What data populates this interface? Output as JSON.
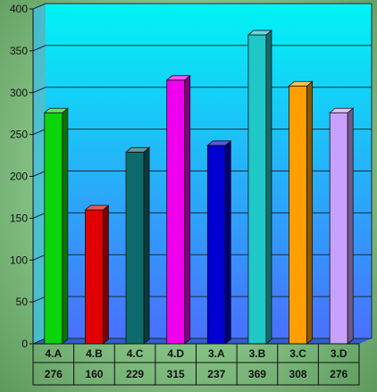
{
  "chart_data": {
    "type": "bar",
    "categories": [
      "4.A",
      "4.B",
      "4.C",
      "4.D",
      "3.A",
      "3.B",
      "3.C",
      "3.D"
    ],
    "values": [
      276,
      160,
      229,
      315,
      237,
      369,
      308,
      276
    ],
    "y_ticks": [
      0,
      50,
      100,
      150,
      200,
      250,
      300,
      350,
      400
    ],
    "ylim": [
      0,
      400
    ],
    "grid": true,
    "style": "3d-bar-with-data-table",
    "bar_colors": [
      "#0bd40b",
      "#e00000",
      "#0e6b6b",
      "#ee00ee",
      "#0000d0",
      "#20c7c7",
      "#ffa000",
      "#c8a0ff"
    ],
    "plot_gradient": [
      "#00f4f4",
      "#4a70ff"
    ]
  }
}
